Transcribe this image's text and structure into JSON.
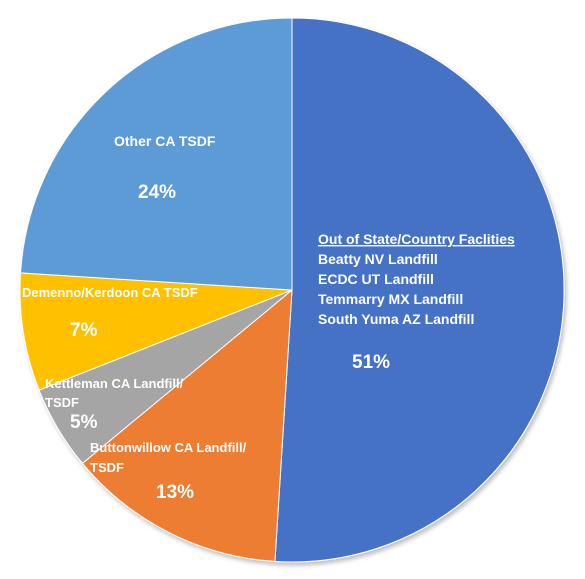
{
  "chart_data": {
    "type": "pie",
    "start_angle_deg": 0,
    "direction": "clockwise",
    "slices": [
      {
        "name": "Out of State/Country Faclities",
        "value": 51,
        "label": "51%",
        "color": "#4472C4",
        "details": [
          "Beatty NV Landfill",
          "ECDC UT Landfill",
          "Temmarry MX Landfill",
          "South Yuma AZ Landfill"
        ]
      },
      {
        "name": "Buttonwillow CA Landfill/ TSDF",
        "value": 13,
        "label": "13%",
        "color": "#ED7D31",
        "details": []
      },
      {
        "name": "Kettleman CA Landfill/ TSDF",
        "value": 5,
        "label": "5%",
        "color": "#A5A5A5",
        "details": []
      },
      {
        "name": "Demenno/Kerdoon CA TSDF",
        "value": 7,
        "label": "7%",
        "color": "#FFC000",
        "details": []
      },
      {
        "name": "Other CA TSDF",
        "value": 24,
        "label": "24%",
        "color": "#5B9BD5",
        "details": []
      }
    ]
  },
  "labels": {
    "out_of_state_title": "Out of State/Country Faclities",
    "out_of_state_items": [
      "Beatty NV Landfill",
      "ECDC UT Landfill",
      "Temmarry MX Landfill",
      "South Yuma AZ Landfill"
    ],
    "out_of_state_pct": "51%",
    "buttonwillow_line1": "Buttonwillow CA Landfill/",
    "buttonwillow_line2": "TSDF",
    "buttonwillow_pct": "13%",
    "kettleman_line1": "Kettleman CA Landfill/",
    "kettleman_line2": "TSDF",
    "kettleman_pct": "5%",
    "demenno_name": "Demenno/Kerdoon CA TSDF",
    "demenno_pct": "7%",
    "other_name": "Other CA TSDF",
    "other_pct": "24%"
  }
}
